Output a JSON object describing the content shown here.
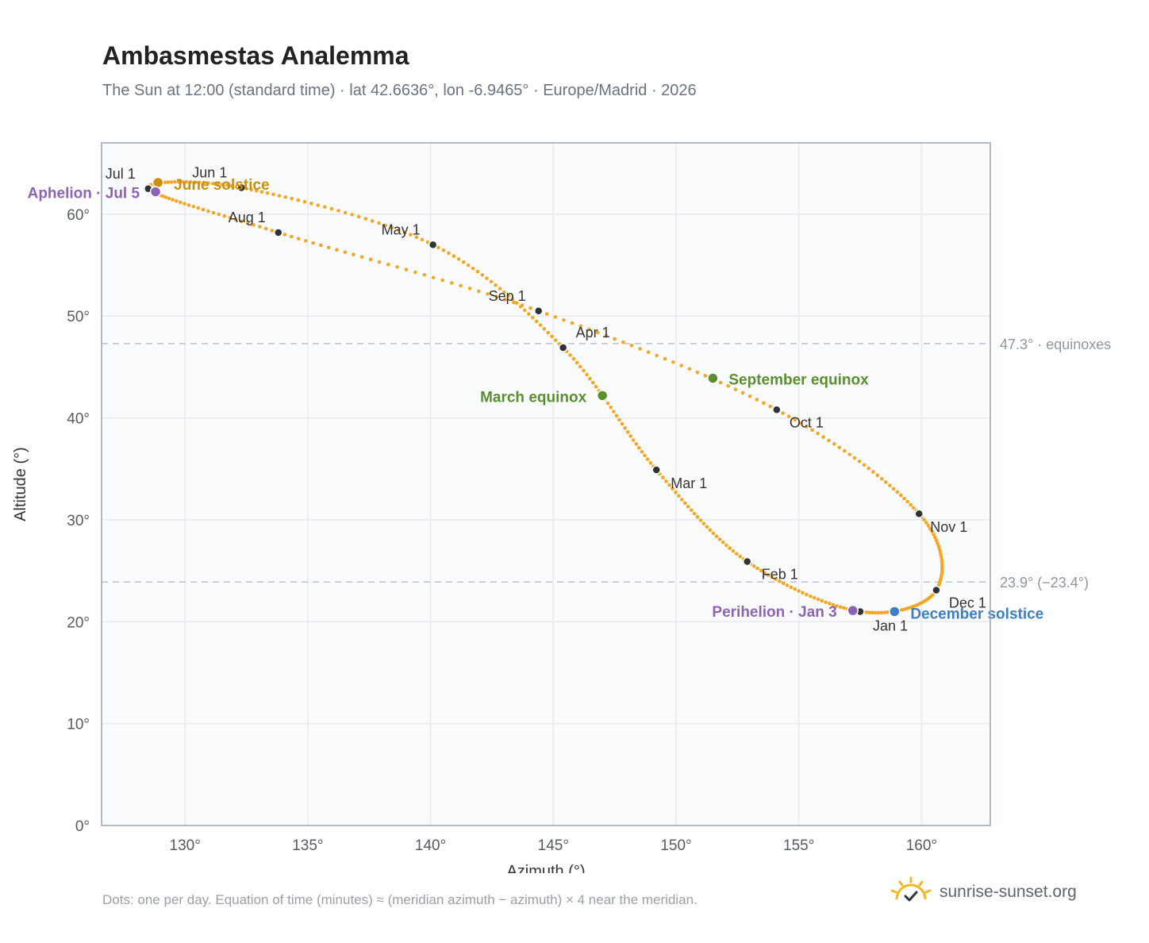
{
  "header": {
    "title": "Ambasmestas Analemma",
    "subtitle": "The Sun at 12:00 (standard time) · lat 42.6636°, lon -6.9465° · Europe/Madrid · 2026"
  },
  "footer": {
    "note": "Dots: one per day. Equation of time (minutes) ≈ (meridian azimuth − azimuth) × 4 near the meridian.",
    "brand": "sunrise-sunset.org",
    "brand_icon": "sun-icon"
  },
  "chart_data": {
    "type": "scatter",
    "xlabel": "Azimuth (°)",
    "ylabel": "Altitude (°)",
    "xlim": [
      126.6,
      162.8
    ],
    "ylim": [
      0,
      67
    ],
    "grid": true,
    "x_ticks": [
      130,
      135,
      140,
      145,
      150,
      155,
      160
    ],
    "x_tick_labels": [
      "130°",
      "135°",
      "140°",
      "145°",
      "150°",
      "155°",
      "160°"
    ],
    "y_ticks": [
      0,
      10,
      20,
      30,
      40,
      50,
      60
    ],
    "y_tick_labels": [
      "0°",
      "10°",
      "20°",
      "30°",
      "40°",
      "50°",
      "60°"
    ],
    "colors": {
      "path": "#f5a623",
      "month_dot": "#2f3237",
      "june_solstice": "#c9900f",
      "december_solstice": "#3d7fc1",
      "equinox": "#5a8f2e",
      "apsis": "#8e63b4",
      "reference_line": "#b9c3ce"
    },
    "series": [
      {
        "points_per_day": 1,
        "months": [
          {
            "date": "Jan 1",
            "az": 157.5,
            "alt": 21.0
          },
          {
            "date": "Feb 1",
            "az": 152.9,
            "alt": 25.9
          },
          {
            "date": "Mar 1",
            "az": 149.2,
            "alt": 34.9
          },
          {
            "date": "Apr 1",
            "az": 145.4,
            "alt": 46.9
          },
          {
            "date": "May 1",
            "az": 140.1,
            "alt": 57.0
          },
          {
            "date": "Jun 1",
            "az": 132.3,
            "alt": 62.6
          },
          {
            "date": "Jul 1",
            "az": 128.5,
            "alt": 62.5
          },
          {
            "date": "Aug 1",
            "az": 133.8,
            "alt": 58.2
          },
          {
            "date": "Sep 1",
            "az": 144.4,
            "alt": 50.5
          },
          {
            "date": "Oct 1",
            "az": 154.1,
            "alt": 40.8
          },
          {
            "date": "Nov 1",
            "az": 159.9,
            "alt": 30.6
          },
          {
            "date": "Dec 1",
            "az": 160.6,
            "alt": 23.1
          }
        ]
      }
    ],
    "events": [
      {
        "label": "June solstice",
        "az": 128.9,
        "alt": 63.1,
        "color": "june_solstice"
      },
      {
        "label": "Aphelion · Jul 5",
        "az": 128.8,
        "alt": 62.2,
        "color": "apsis"
      },
      {
        "label": "March equinox",
        "az": 147.0,
        "alt": 42.2,
        "color": "equinox"
      },
      {
        "label": "September equinox",
        "az": 151.5,
        "alt": 43.9,
        "color": "equinox"
      },
      {
        "label": "Perihelion · Jan 3",
        "az": 157.2,
        "alt": 21.1,
        "color": "apsis"
      },
      {
        "label": "December solstice",
        "az": 158.9,
        "alt": 21.0,
        "color": "december_solstice"
      }
    ],
    "reference_lines": [
      {
        "alt": 47.3,
        "label": "47.3° · equinoxes"
      },
      {
        "alt": 23.9,
        "label": "23.9° (−23.4°)"
      }
    ]
  }
}
